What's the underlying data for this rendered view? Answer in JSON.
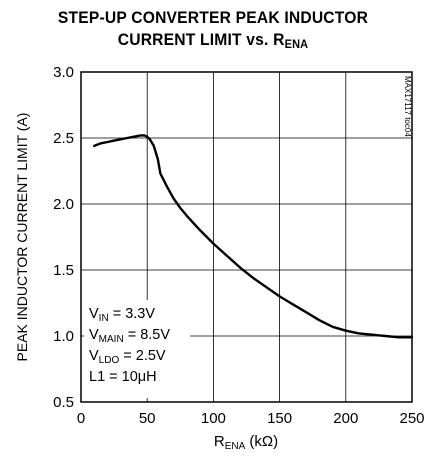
{
  "chart_data": {
    "type": "line",
    "title_line1": "STEP-UP CONVERTER PEAK INDUCTOR",
    "title_line2_prefix": "CURRENT LIMIT vs. R",
    "title_line2_sub": "ENA",
    "xlabel_main": "R",
    "xlabel_sub": "ENA",
    "xlabel_unit": " (kΩ)",
    "ylabel": "PEAK INDUCTOR CURRENT LIMIT (A)",
    "figure_id": "MAX17117 toc04",
    "xlim": [
      0,
      250
    ],
    "ylim": [
      0.5,
      3.0
    ],
    "xticks": [
      "0",
      "50",
      "100",
      "150",
      "200",
      "250"
    ],
    "yticks": [
      "0.5",
      "1.0",
      "1.5",
      "2.0",
      "2.5",
      "3.0"
    ],
    "grid": true,
    "annotations": [
      {
        "main": "V",
        "sub": "IN",
        "rest": " = 3.3V"
      },
      {
        "main": "V",
        "sub": "MAIN",
        "rest": " = 8.5V"
      },
      {
        "main": "V",
        "sub": "LDO",
        "rest": " = 2.5V"
      },
      {
        "main": "L1 = 10μH",
        "sub": "",
        "rest": ""
      }
    ],
    "series": [
      {
        "x": [
          10,
          15,
          20,
          25,
          30,
          35,
          40,
          45,
          48,
          50,
          52,
          55,
          58,
          60,
          65,
          70,
          75,
          80,
          90,
          100,
          110,
          120,
          130,
          140,
          150,
          160,
          170,
          180,
          190,
          200,
          210,
          220,
          230,
          240,
          250
        ],
        "y": [
          2.44,
          2.46,
          2.47,
          2.48,
          2.49,
          2.5,
          2.51,
          2.52,
          2.52,
          2.51,
          2.49,
          2.44,
          2.34,
          2.23,
          2.13,
          2.04,
          1.97,
          1.91,
          1.8,
          1.7,
          1.61,
          1.52,
          1.44,
          1.37,
          1.3,
          1.24,
          1.18,
          1.12,
          1.07,
          1.04,
          1.02,
          1.01,
          1.0,
          0.99,
          0.99
        ]
      }
    ]
  }
}
